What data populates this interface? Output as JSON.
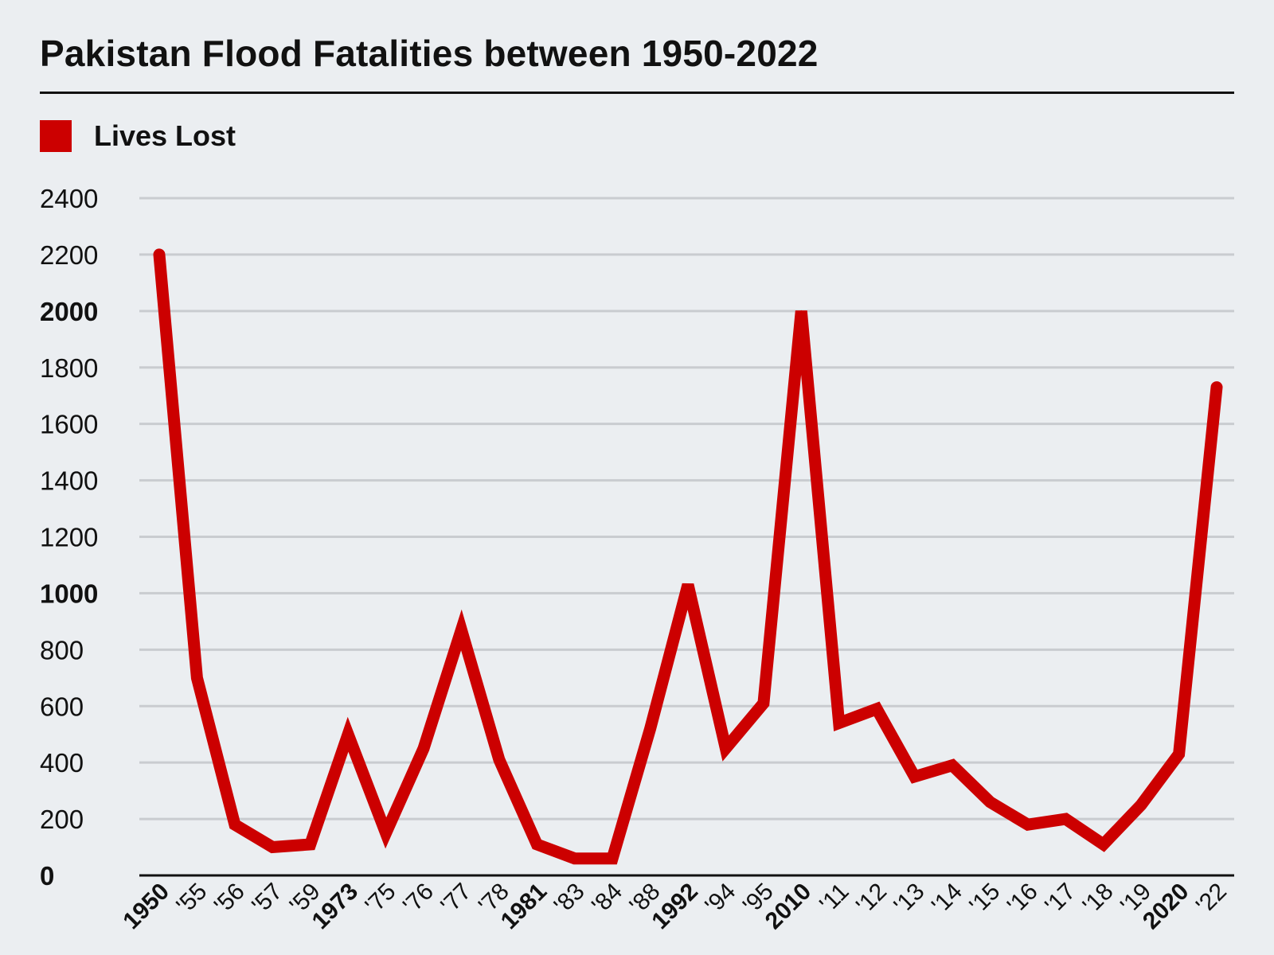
{
  "title": "Pakistan Flood Fatalities between 1950-2022",
  "legend": {
    "label": "Lives Lost",
    "color": "#cc0000"
  },
  "chart_data": {
    "type": "line",
    "title": "Pakistan Flood Fatalities between 1950-2022",
    "xlabel": "",
    "ylabel": "",
    "ylim": [
      0,
      2400
    ],
    "yticks": [
      0,
      200,
      400,
      600,
      800,
      1000,
      1200,
      1400,
      1600,
      1800,
      2000,
      2200,
      2400
    ],
    "yticks_bold": [
      0,
      1000,
      2000
    ],
    "grid": true,
    "legend_position": "top-left",
    "categories": [
      "1950",
      "'55",
      "'56",
      "'57",
      "'59",
      "1973",
      "'75",
      "'76",
      "'77",
      "'78",
      "1981",
      "'83",
      "'84",
      "'88",
      "1992",
      "'94",
      "'95",
      "2010",
      "'11",
      "'12",
      "'13",
      "'14",
      "'15",
      "'16",
      "'17",
      "'18",
      "'19",
      "2020",
      "'22"
    ],
    "categories_bold": [
      "1950",
      "1973",
      "1981",
      "1992",
      "2010",
      "2020"
    ],
    "series": [
      {
        "name": "Lives Lost",
        "color": "#cc0000",
        "values": [
          2200,
          700,
          180,
          100,
          110,
          500,
          150,
          450,
          870,
          410,
          110,
          60,
          60,
          520,
          1030,
          450,
          610,
          2000,
          540,
          590,
          350,
          390,
          260,
          180,
          200,
          110,
          250,
          430,
          1730
        ]
      }
    ]
  }
}
